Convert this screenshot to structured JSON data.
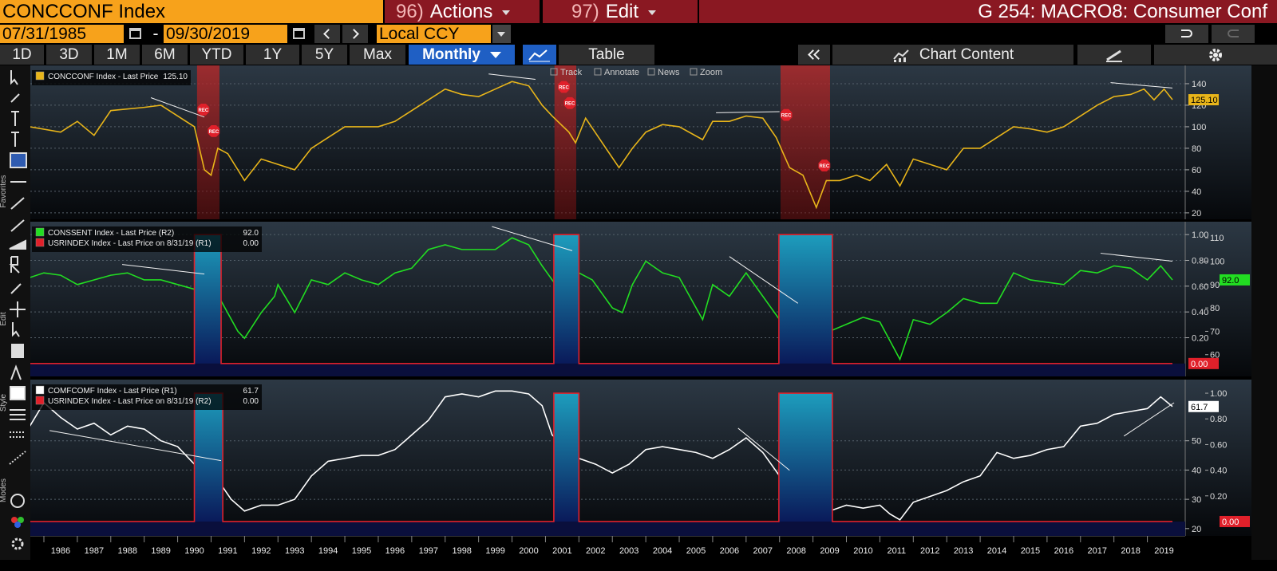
{
  "header": {
    "security": "CONCCONF Index",
    "actions": {
      "num": "96)",
      "label": "Actions"
    },
    "edit": {
      "num": "97)",
      "label": "Edit"
    },
    "screen": "G 254: MACRO8: Consumer Conf"
  },
  "dates": {
    "start": "07/31/1985",
    "separator": "-",
    "end": "09/30/2019",
    "currency": "Local CCY"
  },
  "periods": [
    "1D",
    "3D",
    "1M",
    "6M",
    "YTD",
    "1Y",
    "5Y",
    "Max"
  ],
  "frequency": "Monthly",
  "table_button": "Table",
  "chart_content": "Chart Content",
  "chart_tools": [
    "Track",
    "Annotate",
    "News",
    "Zoom"
  ],
  "sidebar": [
    "Favorites",
    "Edit",
    "Style",
    "Modes"
  ],
  "x_axis": {
    "xlim": [
      1985.58,
      2019.75
    ],
    "xticks": [
      1986,
      1987,
      1988,
      1989,
      1990,
      1991,
      1992,
      1993,
      1994,
      1995,
      1996,
      1997,
      1998,
      1999,
      2000,
      2001,
      2002,
      2003,
      2004,
      2005,
      2006,
      2007,
      2008,
      2009,
      2010,
      2011,
      2012,
      2013,
      2014,
      2015,
      2016,
      2017,
      2018,
      2019
    ]
  },
  "chart_data": [
    {
      "type": "line",
      "ylim": [
        14,
        157
      ],
      "yticks": [
        20,
        40,
        60,
        80,
        100,
        120,
        140
      ],
      "grid": true,
      "legend": "top-left",
      "shaded_periods": [
        [
          1990.58,
          1991.25
        ],
        [
          2001.27,
          2001.92
        ],
        [
          2008.03,
          2009.51
        ]
      ],
      "shade_color": "#b02020",
      "series": [
        {
          "name": "CONCCONF Index - Last Price",
          "color": "#e8b51a",
          "label_color": "#000000",
          "last_value_label": "125.10",
          "x": [
            1985.58,
            1986.5,
            1987,
            1987.5,
            1988,
            1989,
            1989.5,
            1990,
            1990.5,
            1990.8,
            1991,
            1991.2,
            1991.5,
            1992,
            1992.5,
            1993,
            1993.5,
            1994,
            1994.5,
            1995,
            1996,
            1996.5,
            1997,
            1997.5,
            1998,
            1998.5,
            1999,
            1999.5,
            2000,
            2000.5,
            2000.9,
            2001.2,
            2001.7,
            2001.9,
            2002.2,
            2002.7,
            2003.2,
            2003.6,
            2004,
            2004.5,
            2005,
            2005.7,
            2006,
            2006.5,
            2007,
            2007.5,
            2007.9,
            2008.3,
            2008.7,
            2009.1,
            2009.4,
            2009.8,
            2010.3,
            2010.7,
            2011.2,
            2011.6,
            2012,
            2012.5,
            2013,
            2013.5,
            2014,
            2014.5,
            2015,
            2015.5,
            2016,
            2016.5,
            2017,
            2017.5,
            2018,
            2018.5,
            2018.9,
            2019.2,
            2019.5,
            2019.75
          ],
          "values": [
            100,
            95,
            105,
            92,
            115,
            118,
            120,
            110,
            100,
            60,
            55,
            80,
            75,
            50,
            70,
            65,
            60,
            80,
            90,
            100,
            100,
            105,
            115,
            125,
            135,
            130,
            128,
            135,
            142,
            138,
            120,
            110,
            95,
            85,
            108,
            85,
            62,
            80,
            95,
            102,
            100,
            88,
            105,
            105,
            110,
            108,
            90,
            62,
            55,
            25,
            50,
            50,
            55,
            50,
            65,
            45,
            70,
            65,
            60,
            80,
            80,
            90,
            100,
            98,
            95,
            100,
            110,
            120,
            128,
            130,
            135,
            125,
            135,
            125.1
          ]
        }
      ],
      "markers": {
        "label": "REC",
        "color": "#e0202a",
        "x": [
          1990.77,
          1991.08,
          2001.55,
          2001.73,
          2008.2,
          2009.34
        ],
        "values": [
          116,
          96,
          137,
          122,
          111,
          64
        ]
      },
      "trend_lines": [
        {
          "points": [
            [
              1989.2,
              127
            ],
            [
              1990.8,
              109
            ]
          ]
        },
        {
          "points": [
            [
              1999.3,
              149
            ],
            [
              2000.7,
              144
            ]
          ]
        },
        {
          "points": [
            [
              2006.1,
              113
            ],
            [
              2008.0,
              114
            ]
          ]
        },
        {
          "points": [
            [
              2017.9,
              141
            ],
            [
              2019.75,
              136
            ]
          ]
        }
      ]
    },
    {
      "type": "line",
      "ylim": [
        -0.1,
        1.1
      ],
      "yticks": [
        {
          "value": 0.2,
          "label": "0.20"
        },
        {
          "value": 0.4,
          "label": "0.40"
        },
        {
          "value": 0.6,
          "label": "0.60"
        },
        {
          "value": 0.8,
          "label": "0.80"
        },
        {
          "value": 1,
          "label": "1.00"
        }
      ],
      "y2lim": [
        50.7,
        116.9
      ],
      "y2ticks": [
        60,
        70,
        80,
        90,
        100,
        110
      ],
      "grid": true,
      "legend": "top-left",
      "series": [
        {
          "name": "CONSSENT Index - Last Price (R2)",
          "color": "#22dd22",
          "label_color": "#000000",
          "axis": "y2",
          "last_value_label": "92.0",
          "x": [
            1985.58,
            1986,
            1986.5,
            1987,
            1987.5,
            1988,
            1988.5,
            1989,
            1989.5,
            1990,
            1990.5,
            1990.8,
            1991,
            1991.3,
            1991.8,
            1992,
            1992.5,
            1992.9,
            1993,
            1993.5,
            1994,
            1994.5,
            1995,
            1995.5,
            1996,
            1996.5,
            1997,
            1997.5,
            1998,
            1998.5,
            1999,
            1999.5,
            2000,
            2000.5,
            2000.9,
            2001.2,
            2001.7,
            2002,
            2002.4,
            2003,
            2003.3,
            2003.6,
            2004,
            2004.5,
            2005,
            2005.7,
            2006,
            2006.5,
            2007,
            2007.5,
            2008,
            2008.5,
            2008.9,
            2009.2,
            2009.5,
            2010,
            2010.5,
            2011,
            2011.6,
            2012,
            2012.5,
            2013,
            2013.5,
            2014,
            2014.5,
            2015,
            2015.5,
            2016,
            2016.5,
            2017,
            2017.5,
            2018,
            2018.5,
            2019,
            2019.4,
            2019.75
          ],
          "values": [
            93,
            95,
            94,
            90,
            92,
            94,
            95,
            92,
            92,
            90,
            88,
            65,
            68,
            83,
            70,
            67,
            78,
            85,
            90,
            78,
            92,
            90,
            95,
            92,
            90,
            95,
            97,
            105,
            107,
            105,
            105,
            105,
            110,
            107,
            98,
            92,
            82,
            95,
            92,
            80,
            78,
            90,
            100,
            95,
            93,
            75,
            90,
            85,
            95,
            85,
            75,
            58,
            60,
            57,
            70,
            73,
            76,
            74,
            58,
            75,
            73,
            78,
            84,
            82,
            82,
            95,
            92,
            91,
            90,
            96,
            95,
            98,
            97,
            92,
            98,
            92
          ]
        },
        {
          "name": "USRINDEX Index - Last Price on 8/31/19 (R1)",
          "color": "#e0202a",
          "label_color": "#ffffff",
          "fill": true,
          "area_color": "#1a8fb0",
          "last_value_label": "0.00",
          "x": [
            1985.58,
            1990.5,
            1990.5,
            1991.3,
            1991.3,
            2001.25,
            2001.25,
            2002.0,
            2002.0,
            2007.98,
            2007.98,
            2009.58,
            2009.58,
            2019.75
          ],
          "values": [
            0,
            0,
            1,
            1,
            0,
            0,
            1,
            1,
            0,
            0,
            1,
            1,
            0,
            0
          ]
        }
      ],
      "trend_lines": [
        {
          "axis": "y2",
          "points": [
            [
              1988.34,
              98.6
            ],
            [
              1990.8,
              94.5
            ]
          ]
        },
        {
          "axis": "y2",
          "points": [
            [
              1999.4,
              114.8
            ],
            [
              2001.8,
              104.5
            ]
          ]
        },
        {
          "axis": "y2",
          "points": [
            [
              2006.5,
              102
            ],
            [
              2008.55,
              82
            ]
          ]
        },
        {
          "axis": "y2",
          "points": [
            [
              2017.6,
              103.4
            ],
            [
              2019.75,
              100
            ]
          ]
        }
      ]
    },
    {
      "type": "line",
      "ylim": [
        17.5,
        70.9
      ],
      "yticks": [
        20,
        30,
        40,
        50
      ],
      "y2lim": [
        -0.112,
        1.106
      ],
      "y2ticks": [
        {
          "value": 0.2,
          "label": "0.20"
        },
        {
          "value": 0.4,
          "label": "0.40"
        },
        {
          "value": 0.6,
          "label": "0.60"
        },
        {
          "value": 0.8,
          "label": "0.80"
        },
        {
          "value": 1,
          "label": "1.00"
        }
      ],
      "grid": true,
      "legend": "top-left",
      "series": [
        {
          "name": "COMFCOMF Index - Last Price (R1)",
          "color": "#ffffff",
          "label_color": "#000000",
          "last_value_label": "61.7",
          "x": [
            1985.58,
            1986,
            1986.5,
            1987,
            1987.5,
            1988,
            1988.5,
            1989,
            1989.5,
            1990,
            1990.5,
            1990.8,
            1991,
            1991.3,
            1991.6,
            1992,
            1992.5,
            1993,
            1993.5,
            1994,
            1994.5,
            1995,
            1995.5,
            1996,
            1996.5,
            1997,
            1997.5,
            1998,
            1998.5,
            1999,
            1999.5,
            2000,
            2000.5,
            2000.9,
            2001.2,
            2001.6,
            2002,
            2002.5,
            2003,
            2003.5,
            2004,
            2004.5,
            2005,
            2005.5,
            2006,
            2006.5,
            2007,
            2007.5,
            2008,
            2008.4,
            2008.8,
            2009.2,
            2009.5,
            2010,
            2010.5,
            2011,
            2011.3,
            2011.6,
            2012,
            2012.5,
            2013,
            2013.5,
            2014,
            2014.5,
            2015,
            2015.5,
            2016,
            2016.5,
            2017,
            2017.5,
            2018,
            2018.5,
            2019,
            2019.4,
            2019.75
          ],
          "values": [
            55,
            63,
            58,
            54,
            56,
            52,
            55,
            54,
            50,
            48,
            42,
            30,
            32,
            35,
            30,
            26,
            28,
            28,
            30,
            38,
            43,
            44,
            45,
            45,
            47,
            52,
            57,
            65,
            66,
            65,
            67,
            67,
            66,
            62,
            52,
            48,
            44,
            42,
            39,
            42,
            47,
            48,
            47,
            46,
            44,
            47,
            51,
            46,
            38,
            30,
            25,
            24,
            26,
            28,
            27,
            28,
            25,
            23,
            29,
            31,
            33,
            36,
            38,
            46,
            44,
            45,
            47,
            48,
            55,
            56,
            59,
            60,
            61,
            65,
            61.7
          ]
        },
        {
          "name": "USRINDEX Index - Last Price on 8/31/19 (R2)",
          "color": "#e0202a",
          "label_color": "#ffffff",
          "axis": "y2",
          "fill": true,
          "area_color": "#1a8fb0",
          "last_value_label": "0.00",
          "x": [
            1985.58,
            1990.5,
            1990.5,
            1991.35,
            1991.35,
            2001.25,
            2001.25,
            2002.0,
            2002.0,
            2007.98,
            2007.98,
            2009.58,
            2009.58,
            2019.75
          ],
          "values": [
            0,
            0,
            1,
            1,
            0,
            0,
            1,
            1,
            0,
            0,
            1,
            1,
            0,
            0
          ]
        }
      ],
      "trend_lines": [
        {
          "points": [
            [
              1986.17,
              53.5
            ],
            [
              1991.3,
              43.2
            ]
          ]
        },
        {
          "points": [
            [
              2006.76,
              54.3
            ],
            [
              2008.3,
              39.9
            ]
          ]
        },
        {
          "points": [
            [
              2018.3,
              51.6
            ],
            [
              2019.8,
              63
            ]
          ]
        }
      ]
    }
  ]
}
